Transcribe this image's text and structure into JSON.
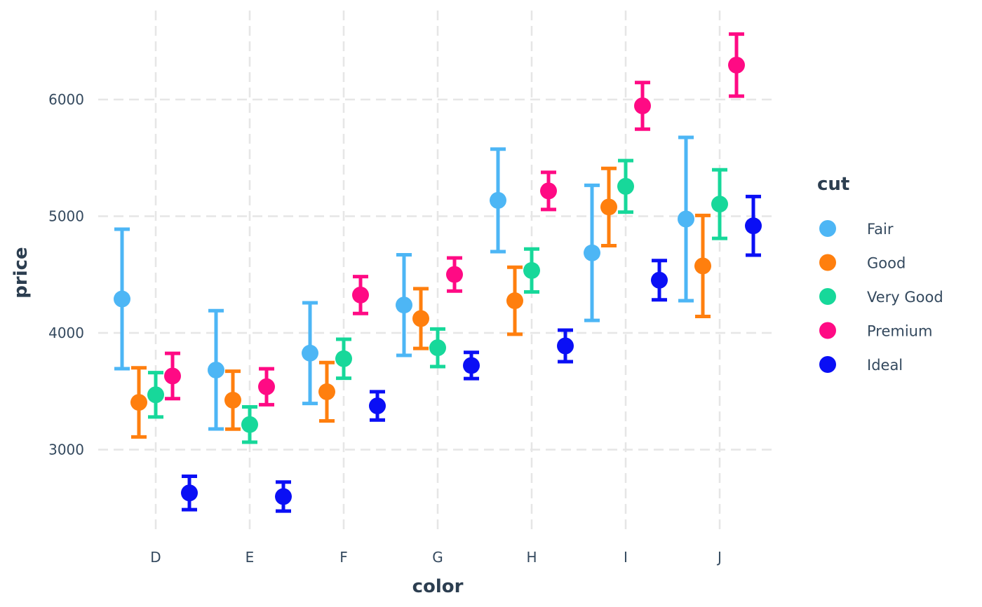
{
  "chart_data": {
    "type": "scatter",
    "subtype": "pointrange-dodged",
    "title": "",
    "xlabel": "color",
    "ylabel": "price",
    "categories": [
      "D",
      "E",
      "F",
      "G",
      "H",
      "I",
      "J"
    ],
    "y_ticks": [
      3000,
      4000,
      5000,
      6000
    ],
    "ylim": [
      2200,
      6750
    ],
    "grid": true,
    "legend": {
      "title": "cut",
      "position": "right"
    },
    "series": [
      {
        "name": "Fair",
        "color": "#4db6f5",
        "values": [
          4291,
          3682,
          3827,
          4239,
          5136,
          4686,
          4976
        ],
        "lower": [
          3694,
          3177,
          3396,
          3808,
          4697,
          4107,
          4276
        ],
        "upper": [
          4889,
          4191,
          4258,
          4670,
          5575,
          5265,
          5676
        ]
      },
      {
        "name": "Good",
        "color": "#ff7f0e",
        "values": [
          3405,
          3424,
          3496,
          4123,
          4276,
          5079,
          4574
        ],
        "lower": [
          3109,
          3176,
          3246,
          3867,
          3989,
          4748,
          4141
        ],
        "upper": [
          3701,
          3672,
          3746,
          4379,
          4563,
          5410,
          5007
        ]
      },
      {
        "name": "Very Good",
        "color": "#17d89a",
        "values": [
          3470,
          3215,
          3779,
          3873,
          4535,
          5256,
          5104
        ],
        "lower": [
          3280,
          3064,
          3612,
          3712,
          4351,
          5035,
          4810
        ],
        "upper": [
          3660,
          3366,
          3946,
          4034,
          4719,
          5477,
          5398
        ]
      },
      {
        "name": "Premium",
        "color": "#ff0a84",
        "values": [
          3631,
          3539,
          4325,
          4501,
          5217,
          5946,
          6295
        ],
        "lower": [
          3437,
          3385,
          4167,
          4359,
          5058,
          5746,
          6029
        ],
        "upper": [
          3825,
          3693,
          4483,
          4643,
          5376,
          6146,
          6561
        ]
      },
      {
        "name": "Ideal",
        "color": "#0a0ff5",
        "values": [
          2629,
          2598,
          3375,
          3721,
          3889,
          4452,
          4918
        ],
        "lower": [
          2486,
          2474,
          3254,
          3609,
          3754,
          4284,
          4667
        ],
        "upper": [
          2772,
          2722,
          3496,
          3833,
          4024,
          4620,
          5169
        ]
      }
    ]
  }
}
